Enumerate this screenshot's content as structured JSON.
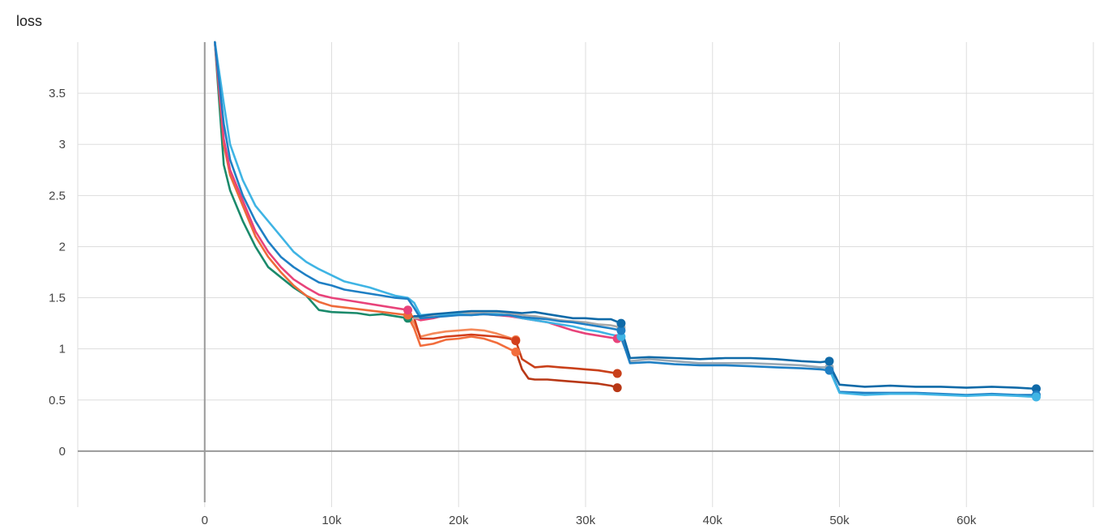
{
  "chart_data": {
    "type": "line",
    "title": "loss",
    "xlabel": "",
    "ylabel": "",
    "xlim": [
      -10000,
      70000
    ],
    "ylim": [
      -0.5,
      4.0
    ],
    "xticks": [
      0,
      10000,
      20000,
      30000,
      40000,
      50000,
      60000
    ],
    "xtick_labels": [
      "0",
      "10k",
      "20k",
      "30k",
      "40k",
      "50k",
      "60k"
    ],
    "yticks": [
      0,
      0.5,
      1,
      1.5,
      2,
      2.5,
      3,
      3.5
    ],
    "ytick_labels": [
      "0",
      "0.5",
      "1",
      "1.5",
      "2",
      "2.5",
      "3",
      "3.5"
    ],
    "grid": true,
    "legend": "none",
    "series": [
      {
        "color": "#1b8a6b",
        "x": [
          800,
          1500,
          2000,
          3000,
          4000,
          5000,
          6000,
          7000,
          8000,
          9000,
          10000,
          12000,
          13000,
          14000,
          15000,
          16000
        ],
        "y": [
          4.0,
          2.8,
          2.55,
          2.25,
          2.0,
          1.8,
          1.7,
          1.6,
          1.52,
          1.38,
          1.36,
          1.35,
          1.33,
          1.34,
          1.32,
          1.3
        ]
      },
      {
        "color": "#ee6a3a",
        "x": [
          800,
          1500,
          2000,
          3000,
          4000,
          5000,
          6000,
          7000,
          8000,
          9000,
          10000,
          12000,
          14000,
          16000
        ],
        "y": [
          4.0,
          3.0,
          2.7,
          2.4,
          2.1,
          1.9,
          1.75,
          1.62,
          1.52,
          1.46,
          1.42,
          1.39,
          1.36,
          1.33
        ]
      },
      {
        "color": "#e8437a",
        "x": [
          800,
          1500,
          2000,
          3000,
          4000,
          5000,
          6000,
          7000,
          8000,
          9000,
          10000,
          12000,
          14000,
          16000
        ],
        "y": [
          4.0,
          3.05,
          2.75,
          2.45,
          2.15,
          1.95,
          1.8,
          1.68,
          1.6,
          1.53,
          1.5,
          1.46,
          1.42,
          1.38
        ]
      },
      {
        "color": "#f26d3c",
        "x": [
          16000,
          16500,
          17000,
          18000,
          19000,
          20000,
          21000,
          22000,
          23000,
          24000,
          24500
        ],
        "y": [
          1.32,
          1.2,
          1.03,
          1.05,
          1.09,
          1.1,
          1.12,
          1.1,
          1.06,
          1.0,
          0.97
        ]
      },
      {
        "color": "#f5895a",
        "x": [
          16000,
          16500,
          17000,
          18000,
          19000,
          20000,
          21000,
          22000,
          23000,
          24000,
          24500
        ],
        "y": [
          1.34,
          1.25,
          1.12,
          1.15,
          1.17,
          1.18,
          1.19,
          1.18,
          1.15,
          1.11,
          1.09
        ]
      },
      {
        "color": "#d33f1c",
        "x": [
          16000,
          16500,
          17000,
          18000,
          19000,
          20000,
          21000,
          22000,
          23000,
          24000,
          24500
        ],
        "y": [
          1.36,
          1.3,
          1.1,
          1.1,
          1.12,
          1.13,
          1.14,
          1.13,
          1.12,
          1.1,
          1.08
        ]
      },
      {
        "color": "#c9401a",
        "x": [
          24500,
          25000,
          26000,
          27000,
          28000,
          29000,
          30000,
          31000,
          32000,
          32500
        ],
        "y": [
          1.08,
          0.9,
          0.82,
          0.83,
          0.82,
          0.81,
          0.8,
          0.79,
          0.77,
          0.76
        ]
      },
      {
        "color": "#b83816",
        "x": [
          24500,
          25000,
          25500,
          26000,
          27000,
          28000,
          29000,
          30000,
          31000,
          32000,
          32500
        ],
        "y": [
          0.98,
          0.8,
          0.71,
          0.7,
          0.7,
          0.69,
          0.68,
          0.67,
          0.66,
          0.64,
          0.62
        ]
      },
      {
        "color": "#e8437a",
        "x": [
          16500,
          17000,
          18000,
          19000,
          20000,
          21000,
          22000,
          23000,
          24000,
          25000,
          26000,
          27000,
          28000,
          29000,
          30000,
          31000,
          32000,
          32500
        ],
        "y": [
          1.3,
          1.28,
          1.3,
          1.33,
          1.36,
          1.35,
          1.34,
          1.33,
          1.32,
          1.3,
          1.28,
          1.26,
          1.22,
          1.18,
          1.15,
          1.13,
          1.11,
          1.1
        ]
      },
      {
        "color": "#a9a9a9",
        "x": [
          16500,
          17000,
          18000,
          19000,
          20000,
          21000,
          22000,
          23000,
          24000,
          25000,
          26000,
          27000,
          28000,
          29000,
          30000,
          31000,
          32000,
          32800
        ],
        "y": [
          1.3,
          1.3,
          1.33,
          1.34,
          1.35,
          1.35,
          1.36,
          1.36,
          1.35,
          1.33,
          1.32,
          1.3,
          1.28,
          1.27,
          1.26,
          1.24,
          1.23,
          1.21
        ]
      },
      {
        "color": "#3fb4e4",
        "x": [
          800,
          1500,
          2000,
          3000,
          4000,
          5000,
          6000,
          7000,
          8000,
          9000,
          10000,
          11000,
          12000,
          13000,
          14000,
          15000,
          16000,
          16500,
          17000,
          18000,
          19000,
          20000,
          21000,
          22000,
          23000,
          24000,
          25000,
          26000,
          27000,
          28000,
          29000,
          30000,
          31000,
          32000,
          32800
        ],
        "y": [
          4.0,
          3.4,
          3.0,
          2.65,
          2.4,
          2.25,
          2.1,
          1.95,
          1.85,
          1.78,
          1.72,
          1.66,
          1.63,
          1.6,
          1.56,
          1.52,
          1.5,
          1.45,
          1.33,
          1.34,
          1.33,
          1.34,
          1.33,
          1.34,
          1.34,
          1.33,
          1.3,
          1.28,
          1.26,
          1.24,
          1.22,
          1.19,
          1.17,
          1.14,
          1.12
        ]
      },
      {
        "color": "#1f7fc4",
        "x": [
          800,
          1500,
          2000,
          3000,
          4000,
          5000,
          6000,
          7000,
          8000,
          9000,
          10000,
          11000,
          12000,
          13000,
          14000,
          15000,
          16000,
          16500,
          17000,
          18000,
          19000,
          20000,
          21000,
          22000,
          23000,
          24000,
          25000,
          26000,
          27000,
          28000,
          29000,
          30000,
          31000,
          32000,
          32800
        ],
        "y": [
          4.0,
          3.2,
          2.85,
          2.5,
          2.25,
          2.05,
          1.9,
          1.8,
          1.72,
          1.65,
          1.62,
          1.58,
          1.56,
          1.54,
          1.52,
          1.5,
          1.49,
          1.4,
          1.3,
          1.31,
          1.32,
          1.33,
          1.33,
          1.34,
          1.33,
          1.33,
          1.31,
          1.3,
          1.29,
          1.27,
          1.26,
          1.24,
          1.22,
          1.2,
          1.18
        ]
      },
      {
        "color": "#0f6aa8",
        "x": [
          16500,
          17000,
          18000,
          19000,
          20000,
          21000,
          22000,
          23000,
          24000,
          25000,
          26000,
          27000,
          28000,
          29000,
          30000,
          31000,
          32000,
          32800
        ],
        "y": [
          1.32,
          1.32,
          1.34,
          1.35,
          1.36,
          1.37,
          1.37,
          1.37,
          1.36,
          1.35,
          1.36,
          1.34,
          1.32,
          1.3,
          1.3,
          1.29,
          1.29,
          1.25
        ]
      },
      {
        "color": "#9aa9b5",
        "x": [
          32800,
          33500,
          35000,
          37000,
          39000,
          41000,
          43000,
          45000,
          47000,
          48500,
          49200
        ],
        "y": [
          1.1,
          0.88,
          0.9,
          0.88,
          0.86,
          0.86,
          0.86,
          0.85,
          0.84,
          0.82,
          0.82
        ]
      },
      {
        "color": "#1f7fc4",
        "x": [
          32800,
          33500,
          35000,
          37000,
          39000,
          41000,
          43000,
          45000,
          47000,
          48500,
          49200
        ],
        "y": [
          1.12,
          0.86,
          0.87,
          0.85,
          0.84,
          0.84,
          0.83,
          0.82,
          0.81,
          0.8,
          0.79
        ]
      },
      {
        "color": "#0f6aa8",
        "x": [
          32800,
          33500,
          35000,
          37000,
          39000,
          41000,
          43000,
          45000,
          47000,
          48500,
          49200
        ],
        "y": [
          1.2,
          0.91,
          0.92,
          0.91,
          0.9,
          0.91,
          0.91,
          0.9,
          0.88,
          0.87,
          0.88
        ]
      },
      {
        "color": "#0f6aa8",
        "x": [
          49200,
          50000,
          52000,
          54000,
          56000,
          58000,
          60000,
          62000,
          64000,
          65500
        ],
        "y": [
          0.85,
          0.65,
          0.63,
          0.64,
          0.63,
          0.63,
          0.62,
          0.63,
          0.62,
          0.61
        ]
      },
      {
        "color": "#1f7fc4",
        "x": [
          49200,
          50000,
          52000,
          54000,
          56000,
          58000,
          60000,
          62000,
          64000,
          65500
        ],
        "y": [
          0.82,
          0.58,
          0.57,
          0.57,
          0.57,
          0.56,
          0.55,
          0.56,
          0.55,
          0.55
        ]
      },
      {
        "color": "#3fb4e4",
        "x": [
          49200,
          50000,
          52000,
          54000,
          56000,
          58000,
          60000,
          62000,
          64000,
          65500
        ],
        "y": [
          0.8,
          0.57,
          0.55,
          0.56,
          0.56,
          0.55,
          0.54,
          0.55,
          0.54,
          0.53
        ]
      }
    ]
  }
}
